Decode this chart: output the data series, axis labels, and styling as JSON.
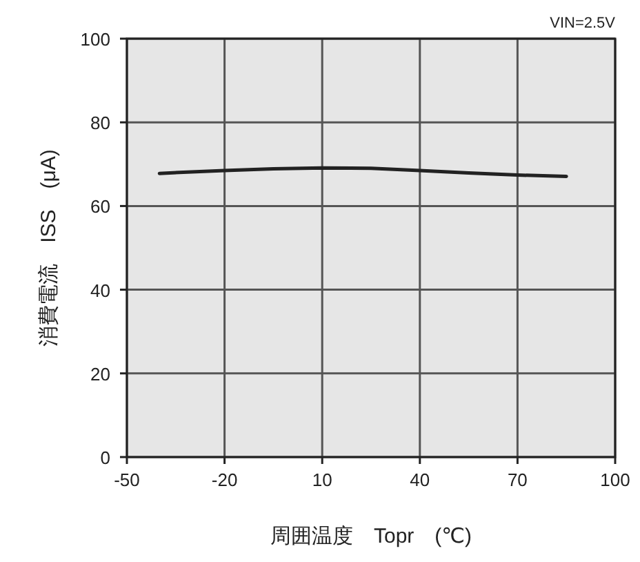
{
  "chart_data": {
    "type": "line",
    "xlabel": "周囲温度　Topr　(℃)",
    "ylabel": "消費電流　ISS　(μA)",
    "annotations": [
      "VIN=2.5V"
    ],
    "x": [
      -40,
      -20,
      -5,
      10,
      25,
      40,
      55,
      70,
      85
    ],
    "series": [
      {
        "color": "#222222",
        "values": [
          67.8,
          68.5,
          68.9,
          69.1,
          69.0,
          68.5,
          67.9,
          67.4,
          67.1
        ]
      }
    ],
    "xlim": [
      -50,
      100
    ],
    "xticks": [
      -50,
      -20,
      10,
      40,
      70,
      100
    ],
    "ylim": [
      0,
      100
    ],
    "yticks": [
      0,
      20,
      40,
      60,
      80,
      100
    ],
    "grid": true,
    "marker": "none",
    "line_style": "solid"
  }
}
